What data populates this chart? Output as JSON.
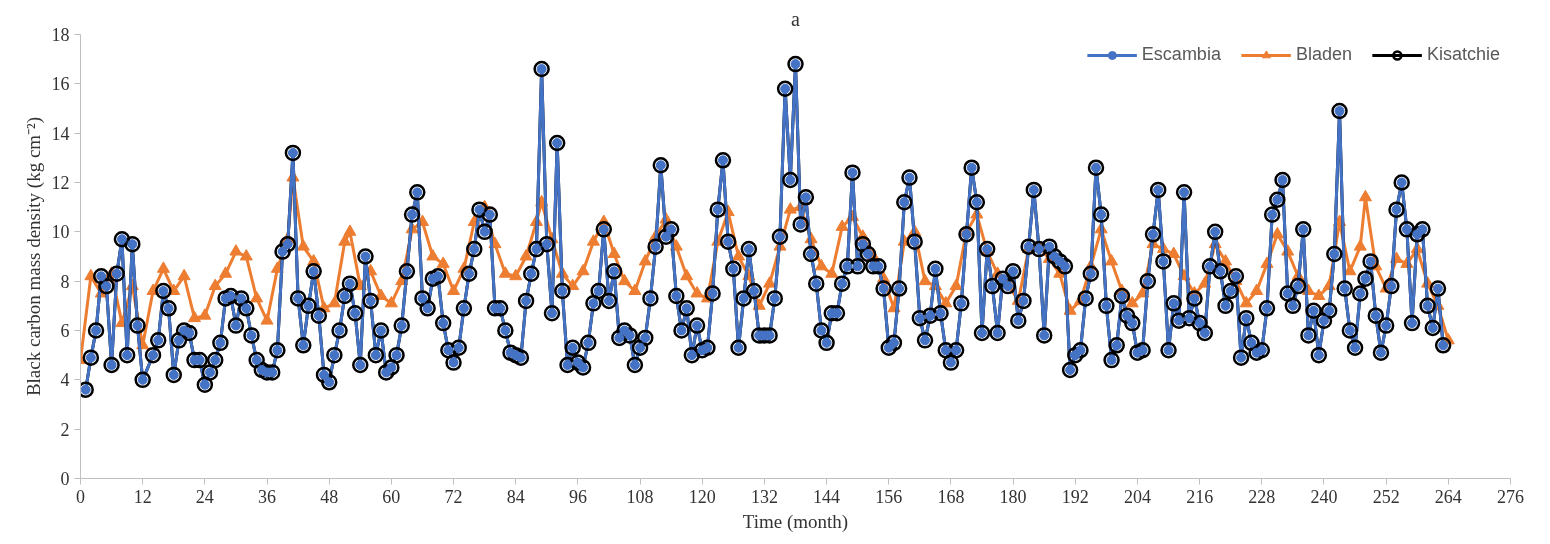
{
  "chart_data": {
    "type": "line",
    "title": "a",
    "xlabel": "Time (month)",
    "ylabel": "Black carbon mass density (kg cm⁻²)",
    "xlim": [
      0,
      276
    ],
    "xticks": [
      0,
      12,
      24,
      36,
      48,
      60,
      72,
      84,
      96,
      108,
      120,
      132,
      144,
      156,
      168,
      180,
      192,
      204,
      216,
      228,
      240,
      252,
      264,
      276
    ],
    "ylim": [
      0,
      18
    ],
    "yticks": [
      0,
      2,
      4,
      6,
      8,
      10,
      12,
      14,
      16,
      18
    ],
    "grid": false,
    "legend": "top right",
    "line_style": "solid",
    "x": [
      1,
      2,
      3,
      4,
      5,
      6,
      7,
      8,
      9,
      10,
      11,
      12,
      14,
      15,
      16,
      17,
      18,
      19,
      20,
      21,
      22,
      23,
      24,
      25,
      26,
      27,
      28,
      29,
      30,
      31,
      32,
      33,
      34,
      35,
      36,
      37,
      38,
      39,
      40,
      41,
      42,
      43,
      44,
      45,
      46,
      47,
      48,
      49,
      50,
      51,
      52,
      53,
      54,
      55,
      56,
      57,
      58,
      59,
      60,
      61,
      62,
      63,
      64,
      65,
      66,
      67,
      68,
      69,
      70,
      71,
      72,
      73,
      74,
      75,
      76,
      77,
      78,
      79,
      80,
      81,
      82,
      83,
      84,
      85,
      86,
      87,
      88,
      89,
      90,
      91,
      92,
      93,
      94,
      95,
      96,
      97,
      98,
      99,
      100,
      101,
      102,
      103,
      104,
      105,
      106,
      107,
      108,
      109,
      110,
      111,
      112,
      113,
      114,
      115,
      116,
      117,
      118,
      119,
      120,
      121,
      122,
      123,
      124,
      125,
      126,
      127,
      128,
      129,
      130,
      131,
      132,
      133,
      134,
      135,
      136,
      137,
      138,
      139,
      140,
      141,
      142,
      143,
      144,
      145,
      146,
      147,
      148,
      149,
      150,
      151,
      152,
      153,
      154,
      155,
      156,
      157,
      158,
      159,
      160,
      161,
      162,
      163,
      164,
      165,
      166,
      167,
      168,
      169,
      170,
      171,
      172,
      173,
      174,
      175,
      176,
      177,
      178,
      179,
      180,
      181,
      182,
      183,
      184,
      185,
      186,
      187,
      188,
      189,
      190,
      191,
      192,
      193,
      194,
      195,
      196,
      197,
      198,
      199,
      200,
      201,
      202,
      203,
      204,
      205,
      206,
      207,
      208,
      209,
      210,
      211,
      212,
      213,
      214,
      215,
      216,
      217,
      218,
      219,
      220,
      221,
      222,
      223,
      224,
      225,
      226,
      227,
      228,
      229,
      230,
      231,
      232,
      233,
      234,
      235,
      236,
      237,
      238,
      239,
      240,
      241,
      242,
      243,
      244,
      245,
      246,
      247,
      248,
      249,
      250,
      251,
      252,
      253,
      254,
      255,
      256,
      257,
      258,
      259,
      260,
      261,
      262,
      263
    ],
    "series": [
      {
        "name": "Escambia",
        "color": "#4472c4",
        "marker": "circle",
        "values": [
          3.6,
          4.9,
          6.0,
          8.2,
          7.8,
          4.6,
          8.3,
          9.7,
          5.0,
          9.5,
          6.2,
          4.0,
          5.0,
          5.6,
          7.6,
          6.9,
          4.2,
          5.6,
          6.0,
          5.9,
          4.8,
          4.8,
          3.8,
          4.3,
          4.8,
          5.5,
          7.3,
          7.4,
          6.2,
          7.3,
          6.9,
          5.8,
          4.8,
          4.4,
          4.3,
          4.3,
          5.2,
          9.2,
          9.5,
          13.2,
          7.3,
          5.4,
          7.0,
          8.4,
          6.6,
          4.2,
          3.9,
          5.0,
          6.0,
          7.4,
          7.9,
          6.7,
          4.6,
          9.0,
          7.2,
          5.0,
          6.0,
          4.3,
          4.5,
          5.0,
          6.2,
          8.4,
          10.7,
          11.6,
          7.3,
          6.9,
          8.1,
          8.2,
          6.3,
          5.2,
          4.7,
          5.3,
          6.9,
          8.3,
          9.3,
          10.9,
          10.0,
          10.7,
          6.9,
          6.9,
          6.0,
          5.1,
          5.0,
          4.9,
          7.2,
          8.3,
          9.3,
          16.6,
          9.5,
          6.7,
          13.6,
          7.6,
          4.6,
          5.3,
          4.7,
          4.5,
          5.5,
          7.1,
          7.6,
          10.1,
          7.2,
          8.4,
          5.7,
          6.0,
          5.8,
          4.6,
          5.3,
          5.7,
          7.3,
          9.4,
          12.7,
          9.8,
          10.1,
          7.4,
          6.0,
          6.9,
          5.0,
          6.2,
          5.2,
          5.3,
          7.5,
          10.9,
          12.9,
          9.6,
          8.5,
          5.3,
          7.3,
          9.3,
          7.6,
          5.8,
          5.8,
          5.8,
          7.3,
          9.8,
          15.8,
          12.1,
          16.8,
          10.3,
          11.4,
          9.1,
          7.9,
          6.0,
          5.5,
          6.7,
          6.7,
          7.9,
          8.6,
          12.4,
          8.6,
          9.5,
          9.1,
          8.6,
          8.6,
          7.7,
          5.3,
          5.5,
          7.7,
          11.2,
          12.2,
          9.6,
          6.5,
          5.6,
          6.6,
          8.5,
          6.7,
          5.2,
          4.7,
          5.2,
          7.1,
          9.9,
          12.6,
          11.2,
          5.9,
          9.3,
          7.8,
          5.9,
          8.1,
          7.8,
          8.4,
          6.4,
          7.2,
          9.4,
          11.7,
          9.3,
          5.8,
          9.4,
          9.0,
          8.8,
          8.6,
          4.4,
          5.0,
          5.2,
          7.3,
          8.3,
          12.6,
          10.7,
          7.0,
          4.8,
          5.4,
          7.4,
          6.6,
          6.3,
          5.1,
          5.2,
          8.0,
          9.9,
          11.7,
          8.8,
          5.2,
          7.1,
          6.4,
          11.6,
          6.5,
          7.3,
          6.3,
          5.9,
          8.6,
          10.0,
          8.4,
          7.0,
          7.6,
          8.2,
          4.9,
          6.5,
          5.5,
          5.1,
          5.2,
          6.9,
          10.7,
          11.3,
          12.1,
          7.5,
          7.0,
          7.8,
          10.1,
          5.8,
          6.8,
          5.0,
          6.4,
          6.8,
          9.1,
          14.9,
          7.7,
          6.0,
          5.3,
          7.5,
          8.1,
          8.8,
          6.6,
          5.1,
          6.2,
          7.8,
          10.9,
          12.0,
          10.1,
          6.3,
          9.9,
          10.1,
          7.0,
          6.1,
          7.7,
          5.4
        ]
      },
      {
        "name": "Bladen",
        "color": "#ed7d31",
        "marker": "triangle",
        "x": [
          0,
          2,
          4,
          6,
          8,
          10,
          12,
          14,
          16,
          18,
          20,
          22,
          24,
          26,
          28,
          30,
          32,
          34,
          36,
          38,
          40,
          41,
          43,
          45,
          47,
          49,
          51,
          52,
          54,
          56,
          58,
          60,
          62,
          64,
          66,
          68,
          70,
          72,
          74,
          76,
          78,
          80,
          82,
          84,
          86,
          88,
          89,
          91,
          93,
          95,
          97,
          99,
          101,
          103,
          105,
          107,
          109,
          111,
          113,
          115,
          117,
          119,
          121,
          123,
          125,
          127,
          129,
          131,
          133,
          135,
          137,
          139,
          141,
          143,
          145,
          147,
          149,
          151,
          153,
          155,
          157,
          159,
          161,
          163,
          165,
          167,
          169,
          171,
          173,
          175,
          177,
          179,
          181,
          183,
          185,
          187,
          189,
          191,
          193,
          195,
          197,
          199,
          201,
          203,
          205,
          207,
          209,
          211,
          213,
          215,
          217,
          219,
          221,
          223,
          225,
          227,
          229,
          231,
          233,
          235,
          237,
          239,
          241,
          243,
          245,
          247,
          248,
          250,
          252,
          254,
          256,
          258,
          260,
          262,
          264
        ],
        "values": [
          4.8,
          8.2,
          7.5,
          8.3,
          6.3,
          7.8,
          5.4,
          7.6,
          8.5,
          7.6,
          8.2,
          6.5,
          6.6,
          7.8,
          8.3,
          9.2,
          9.0,
          7.3,
          6.4,
          8.5,
          9.7,
          12.2,
          9.4,
          8.8,
          6.9,
          7.1,
          9.6,
          10.0,
          7.8,
          8.4,
          7.4,
          7.1,
          8.0,
          10.1,
          10.4,
          9.0,
          8.7,
          7.6,
          8.5,
          10.4,
          11.0,
          9.5,
          8.3,
          8.2,
          9.0,
          10.4,
          11.2,
          9.7,
          8.3,
          7.8,
          8.4,
          9.6,
          10.4,
          9.1,
          8.0,
          7.6,
          8.8,
          9.8,
          10.5,
          9.4,
          8.2,
          7.5,
          7.3,
          9.6,
          10.8,
          9.0,
          8.2,
          7.0,
          7.9,
          9.4,
          10.9,
          11.0,
          9.7,
          8.6,
          8.3,
          10.2,
          10.6,
          9.8,
          9.0,
          8.1,
          6.9,
          9.6,
          10.0,
          8.0,
          7.8,
          7.1,
          7.8,
          10.0,
          10.7,
          9.2,
          8.3,
          7.9,
          7.2,
          9.3,
          9.4,
          8.9,
          8.3,
          6.8,
          7.2,
          8.6,
          10.1,
          8.8,
          7.6,
          7.1,
          7.5,
          9.5,
          9.3,
          9.1,
          8.2,
          7.5,
          7.9,
          9.5,
          8.8,
          8.0,
          7.1,
          7.6,
          8.7,
          9.9,
          9.2,
          8.2,
          7.6,
          7.4,
          7.8,
          10.4,
          8.4,
          9.4,
          11.4,
          8.6,
          7.7,
          8.9,
          8.7,
          9.3,
          7.9,
          7.0,
          5.6
        ]
      },
      {
        "name": "Kisatchie",
        "color": "#000000",
        "marker": "circle",
        "values": [
          3.6,
          4.9,
          6.0,
          8.2,
          7.8,
          4.6,
          8.3,
          9.7,
          5.0,
          9.5,
          6.2,
          4.0,
          5.0,
          5.6,
          7.6,
          6.9,
          4.2,
          5.6,
          6.0,
          5.9,
          4.8,
          4.8,
          3.8,
          4.3,
          4.8,
          5.5,
          7.3,
          7.4,
          6.2,
          7.3,
          6.9,
          5.8,
          4.8,
          4.4,
          4.3,
          4.3,
          5.2,
          9.2,
          9.5,
          13.2,
          7.3,
          5.4,
          7.0,
          8.4,
          6.6,
          4.2,
          3.9,
          5.0,
          6.0,
          7.4,
          7.9,
          6.7,
          4.6,
          9.0,
          7.2,
          5.0,
          6.0,
          4.3,
          4.5,
          5.0,
          6.2,
          8.4,
          10.7,
          11.6,
          7.3,
          6.9,
          8.1,
          8.2,
          6.3,
          5.2,
          4.7,
          5.3,
          6.9,
          8.3,
          9.3,
          10.9,
          10.0,
          10.7,
          6.9,
          6.9,
          6.0,
          5.1,
          5.0,
          4.9,
          7.2,
          8.3,
          9.3,
          16.6,
          9.5,
          6.7,
          13.6,
          7.6,
          4.6,
          5.3,
          4.7,
          4.5,
          5.5,
          7.1,
          7.6,
          10.1,
          7.2,
          8.4,
          5.7,
          6.0,
          5.8,
          4.6,
          5.3,
          5.7,
          7.3,
          9.4,
          12.7,
          9.8,
          10.1,
          7.4,
          6.0,
          6.9,
          5.0,
          6.2,
          5.2,
          5.3,
          7.5,
          10.9,
          12.9,
          9.6,
          8.5,
          5.3,
          7.3,
          9.3,
          7.6,
          5.8,
          5.8,
          5.8,
          7.3,
          9.8,
          15.8,
          12.1,
          16.8,
          10.3,
          11.4,
          9.1,
          7.9,
          6.0,
          5.5,
          6.7,
          6.7,
          7.9,
          8.6,
          12.4,
          8.6,
          9.5,
          9.1,
          8.6,
          8.6,
          7.7,
          5.3,
          5.5,
          7.7,
          11.2,
          12.2,
          9.6,
          6.5,
          5.6,
          6.6,
          8.5,
          6.7,
          5.2,
          4.7,
          5.2,
          7.1,
          9.9,
          12.6,
          11.2,
          5.9,
          9.3,
          7.8,
          5.9,
          8.1,
          7.8,
          8.4,
          6.4,
          7.2,
          9.4,
          11.7,
          9.3,
          5.8,
          9.4,
          9.0,
          8.8,
          8.6,
          4.4,
          5.0,
          5.2,
          7.3,
          8.3,
          12.6,
          10.7,
          7.0,
          4.8,
          5.4,
          7.4,
          6.6,
          6.3,
          5.1,
          5.2,
          8.0,
          9.9,
          11.7,
          8.8,
          5.2,
          7.1,
          6.4,
          11.6,
          6.5,
          7.3,
          6.3,
          5.9,
          8.6,
          10.0,
          8.4,
          7.0,
          7.6,
          8.2,
          4.9,
          6.5,
          5.5,
          5.1,
          5.2,
          6.9,
          10.7,
          11.3,
          12.1,
          7.5,
          7.0,
          7.8,
          10.1,
          5.8,
          6.8,
          5.0,
          6.4,
          6.8,
          9.1,
          14.9,
          7.7,
          6.0,
          5.3,
          7.5,
          8.1,
          8.8,
          6.6,
          5.1,
          6.2,
          7.8,
          10.9,
          12.0,
          10.1,
          6.3,
          9.9,
          10.1,
          7.0,
          6.1,
          7.7,
          5.4
        ]
      }
    ]
  }
}
